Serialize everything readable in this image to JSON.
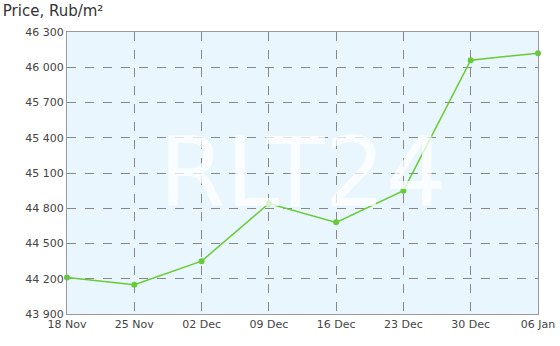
{
  "chart_data": {
    "type": "line",
    "title": "Price, Rub/m²",
    "categories": [
      "18 Nov",
      "25 Nov",
      "02 Dec",
      "09 Dec",
      "16 Dec",
      "23 Dec",
      "30 Dec",
      "06 Jan"
    ],
    "values": [
      44210,
      44150,
      44350,
      44840,
      44680,
      44950,
      46060,
      46120
    ],
    "color": "#66cc33",
    "marker": "circle",
    "ylim": [
      43900,
      46300
    ],
    "yticks": [
      {
        "value": 43900,
        "label": "43 900"
      },
      {
        "value": 44200,
        "label": "44 200"
      },
      {
        "value": 44500,
        "label": "44 500"
      },
      {
        "value": 44800,
        "label": "44 800"
      },
      {
        "value": 45100,
        "label": "45 100"
      },
      {
        "value": 45400,
        "label": "45 400"
      },
      {
        "value": 45700,
        "label": "45 700"
      },
      {
        "value": 46000,
        "label": "46 000"
      },
      {
        "value": 46300,
        "label": "46 300"
      }
    ],
    "grid": true,
    "annotations": [
      "RLT24"
    ]
  }
}
